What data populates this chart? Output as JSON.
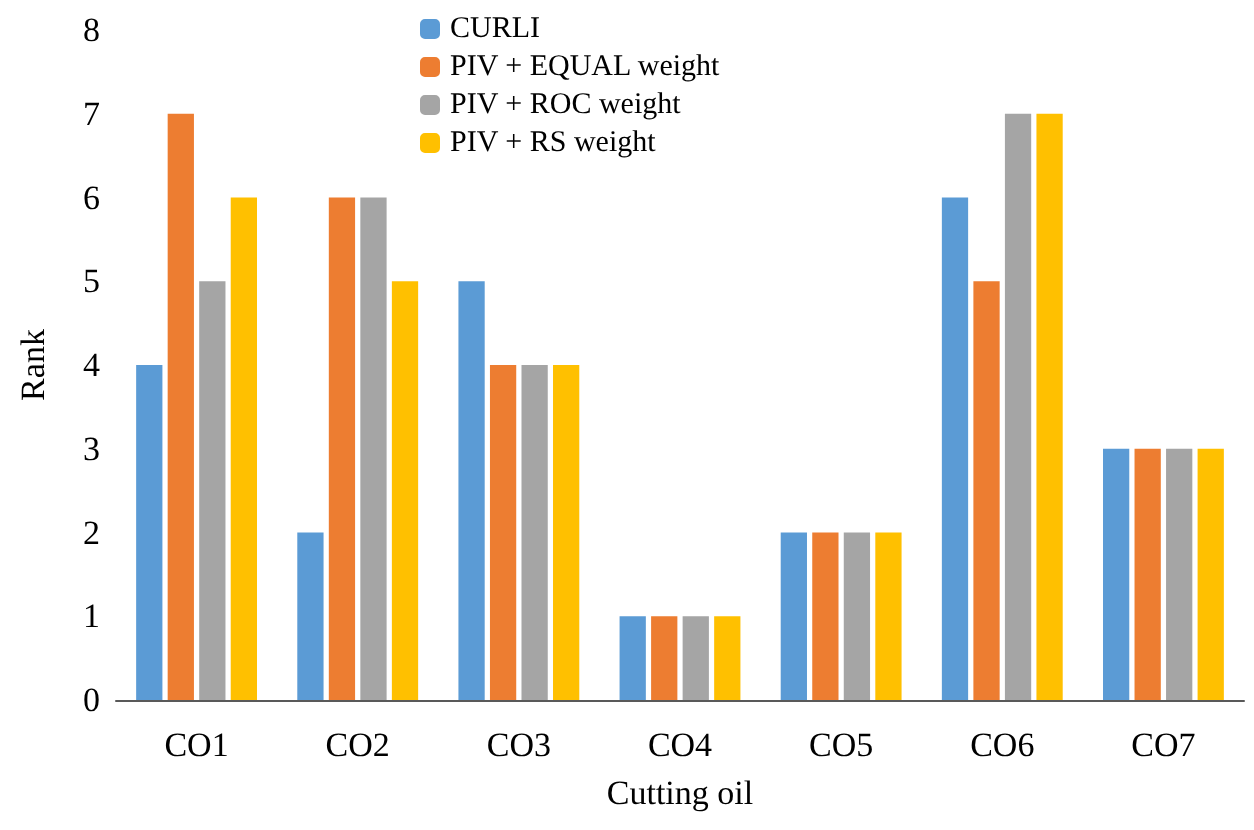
{
  "chart_data": {
    "type": "bar",
    "xlabel": "Cutting oil",
    "ylabel": "Rank",
    "categories": [
      "CO1",
      "CO2",
      "CO3",
      "CO4",
      "CO5",
      "CO6",
      "CO7"
    ],
    "series": [
      {
        "name": "CURLI",
        "color": "#5b9bd5",
        "values": [
          4,
          2,
          5,
          1,
          2,
          6,
          3
        ]
      },
      {
        "name": "PIV + EQUAL weight",
        "color": "#ed7d31",
        "values": [
          7,
          6,
          4,
          1,
          2,
          5,
          3
        ]
      },
      {
        "name": "PIV + ROC weight",
        "color": "#a5a5a5",
        "values": [
          5,
          6,
          4,
          1,
          2,
          7,
          3
        ]
      },
      {
        "name": "PIV + RS weight",
        "color": "#ffc000",
        "values": [
          6,
          5,
          4,
          1,
          2,
          7,
          3
        ]
      }
    ],
    "ylim": [
      0,
      8
    ],
    "yticks": [
      0,
      1,
      2,
      3,
      4,
      5,
      6,
      7,
      8
    ],
    "grid": false,
    "legend": "top left"
  }
}
